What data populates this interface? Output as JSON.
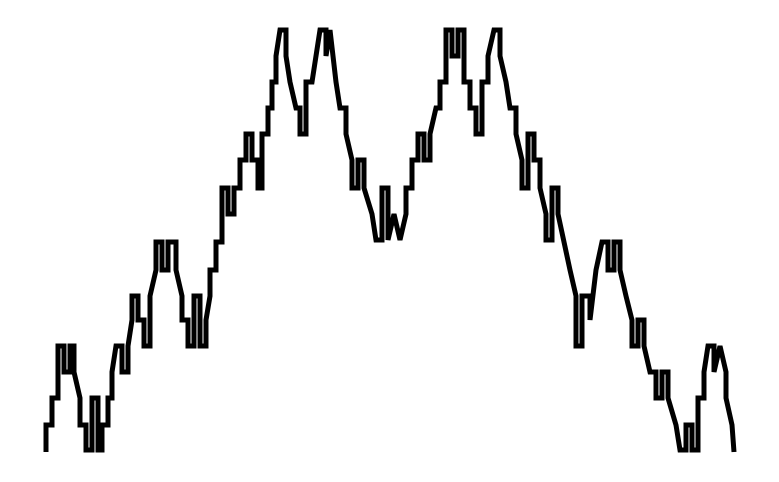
{
  "canvas": {
    "background_color": "#ffffff",
    "stroke_color": "#000000"
  },
  "figure": {
    "kind": "fractal-curve",
    "description_visible_text": ""
  }
}
